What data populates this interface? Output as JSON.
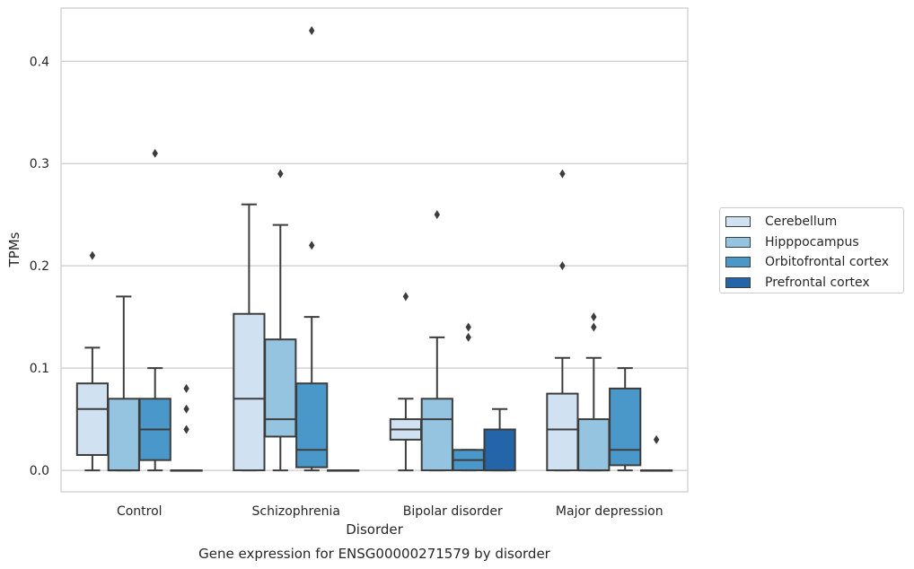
{
  "chart_data": {
    "type": "box",
    "title": "",
    "caption": "Gene expression for ENSG00000271579 by disorder",
    "xlabel": "Disorder",
    "ylabel": "TPMs",
    "ylim": [
      -0.021,
      0.452
    ],
    "yticks": [
      0.0,
      0.1,
      0.2,
      0.3,
      0.4
    ],
    "ytick_labels": [
      "0.0",
      "0.1",
      "0.2",
      "0.3",
      "0.4"
    ],
    "grid": "horizontal",
    "legend_position": "right",
    "categories": [
      "Control",
      "Schizophrenia",
      "Bipolar disorder",
      "Major depression"
    ],
    "series": [
      {
        "name": "Cerebellum",
        "color": "#d0e1f2",
        "boxes": [
          {
            "q1": 0.015,
            "median": 0.06,
            "q3": 0.085,
            "whisker_low": 0.0,
            "whisker_high": 0.12,
            "outliers": [
              0.21
            ]
          },
          {
            "q1": 0.0,
            "median": 0.07,
            "q3": 0.153,
            "whisker_low": 0.0,
            "whisker_high": 0.26,
            "outliers": []
          },
          {
            "q1": 0.03,
            "median": 0.04,
            "q3": 0.05,
            "whisker_low": 0.0,
            "whisker_high": 0.07,
            "outliers": [
              0.17
            ]
          },
          {
            "q1": 0.0,
            "median": 0.04,
            "q3": 0.075,
            "whisker_low": 0.0,
            "whisker_high": 0.11,
            "outliers": [
              0.2,
              0.29
            ]
          }
        ]
      },
      {
        "name": "Hipppocampus",
        "color": "#94c4df",
        "boxes": [
          {
            "q1": 0.0,
            "median": 0.0,
            "q3": 0.07,
            "whisker_low": 0.0,
            "whisker_high": 0.17,
            "outliers": []
          },
          {
            "q1": 0.033,
            "median": 0.05,
            "q3": 0.128,
            "whisker_low": 0.0,
            "whisker_high": 0.24,
            "outliers": [
              0.29
            ]
          },
          {
            "q1": 0.0,
            "median": 0.05,
            "q3": 0.07,
            "whisker_low": 0.0,
            "whisker_high": 0.13,
            "outliers": [
              0.25
            ]
          },
          {
            "q1": 0.0,
            "median": 0.0,
            "q3": 0.05,
            "whisker_low": 0.0,
            "whisker_high": 0.11,
            "outliers": [
              0.14,
              0.15
            ]
          }
        ]
      },
      {
        "name": "Orbitofrontal cortex",
        "color": "#4a98c9",
        "boxes": [
          {
            "q1": 0.01,
            "median": 0.04,
            "q3": 0.07,
            "whisker_low": 0.0,
            "whisker_high": 0.1,
            "outliers": [
              0.31
            ]
          },
          {
            "q1": 0.003,
            "median": 0.02,
            "q3": 0.085,
            "whisker_low": 0.0,
            "whisker_high": 0.15,
            "outliers": [
              0.22,
              0.43
            ]
          },
          {
            "q1": 0.0,
            "median": 0.01,
            "q3": 0.02,
            "whisker_low": 0.0,
            "whisker_high": 0.02,
            "outliers": [
              0.13,
              0.14
            ]
          },
          {
            "q1": 0.005,
            "median": 0.02,
            "q3": 0.08,
            "whisker_low": 0.0,
            "whisker_high": 0.1,
            "outliers": []
          }
        ]
      },
      {
        "name": "Prefrontal cortex",
        "color": "#2464a8",
        "boxes": [
          {
            "q1": 0.0,
            "median": 0.0,
            "q3": 0.0,
            "whisker_low": 0.0,
            "whisker_high": 0.0,
            "outliers": [
              0.04,
              0.06,
              0.08
            ]
          },
          {
            "q1": 0.0,
            "median": 0.0,
            "q3": 0.0,
            "whisker_low": 0.0,
            "whisker_high": 0.0,
            "outliers": []
          },
          {
            "q1": 0.0,
            "median": 0.0,
            "q3": 0.04,
            "whisker_low": 0.0,
            "whisker_high": 0.06,
            "outliers": []
          },
          {
            "q1": 0.0,
            "median": 0.0,
            "q3": 0.0,
            "whisker_low": 0.0,
            "whisker_high": 0.0,
            "outliers": [
              0.03
            ]
          }
        ]
      }
    ]
  }
}
